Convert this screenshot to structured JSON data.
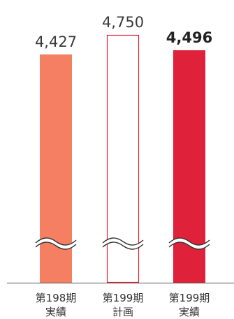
{
  "chart_data": {
    "type": "bar",
    "categories": [
      {
        "line1": "第198期",
        "line2": "実績"
      },
      {
        "line1": "第199期",
        "line2": "計画"
      },
      {
        "line1": "第199期",
        "line2": "実績"
      }
    ],
    "values": [
      4427,
      4750,
      4496
    ],
    "value_labels": [
      "4,427",
      "4,750",
      "4,496"
    ],
    "value_label_bold": [
      false,
      false,
      true
    ],
    "bar_styles": [
      "filled",
      "outline",
      "filled"
    ],
    "colors": {
      "series_0": "#f47f63",
      "series_1_outline": "#e0213a",
      "series_2": "#e0213a",
      "axis": "#555555",
      "break_mark": "#333333"
    },
    "axis_break": true,
    "title": "",
    "xlabel": "",
    "ylabel": ""
  }
}
